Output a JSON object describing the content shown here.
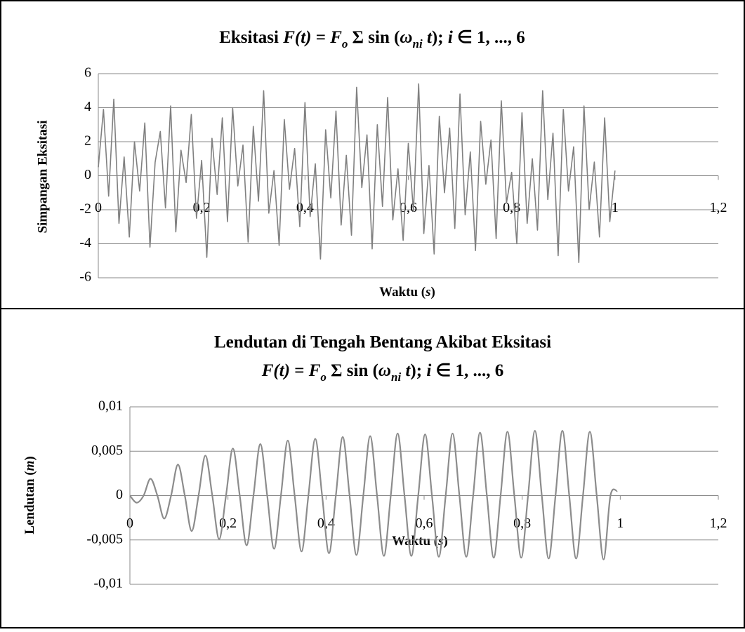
{
  "chart_data": [
    {
      "type": "line",
      "title": [
        "Eksitasi ",
        "F(t)",
        " = ",
        "F",
        "o",
        " Σ sin (",
        "ω",
        "ni",
        " t",
        "); ",
        "i",
        " ∈ 1, ..., 6"
      ],
      "xlabel": [
        "Waktu (",
        "s",
        ")"
      ],
      "ylabel": "Simpangan Eksitasi",
      "xlim": [
        0,
        1.2
      ],
      "xticks": [
        0,
        {
          "value": 0.2,
          "label": "0,2"
        },
        {
          "value": 0.4,
          "label": "0,4"
        },
        {
          "value": 0.6,
          "label": "0,6"
        },
        {
          "value": 0.8,
          "label": "0,8"
        },
        1,
        {
          "value": 1.2,
          "label": "1,2"
        }
      ],
      "ylim": [
        -6,
        6
      ],
      "yticks": [
        -6,
        -4,
        -2,
        0,
        2,
        4,
        6
      ],
      "grid": true,
      "smooth": false,
      "series": [
        {
          "color": "#808080",
          "x": [
            0,
            0.01,
            0.02,
            0.03,
            0.04,
            0.05,
            0.06,
            0.07,
            0.08,
            0.09,
            0.1,
            0.11,
            0.12,
            0.13,
            0.14,
            0.15,
            0.16,
            0.17,
            0.18,
            0.19,
            0.2,
            0.21,
            0.22,
            0.23,
            0.24,
            0.25,
            0.26,
            0.27,
            0.28,
            0.29,
            0.3,
            0.31,
            0.32,
            0.33,
            0.34,
            0.35,
            0.36,
            0.37,
            0.38,
            0.39,
            0.4,
            0.41,
            0.42,
            0.43,
            0.44,
            0.45,
            0.46,
            0.47,
            0.48,
            0.49,
            0.5,
            0.51,
            0.52,
            0.53,
            0.54,
            0.55,
            0.56,
            0.57,
            0.58,
            0.59,
            0.6,
            0.61,
            0.62,
            0.63,
            0.64,
            0.65,
            0.66,
            0.67,
            0.68,
            0.69,
            0.7,
            0.71,
            0.72,
            0.73,
            0.74,
            0.75,
            0.76,
            0.77,
            0.78,
            0.79,
            0.8,
            0.81,
            0.82,
            0.83,
            0.84,
            0.85,
            0.86,
            0.87,
            0.88,
            0.89,
            0.9,
            0.91,
            0.92,
            0.93,
            0.94,
            0.95,
            0.96,
            0.97,
            0.98,
            0.99,
            1.0
          ],
          "values": [
            0.5,
            3.9,
            -1.2,
            4.5,
            -2.8,
            1.1,
            -3.6,
            2.0,
            -0.9,
            3.1,
            -4.2,
            0.8,
            2.6,
            -1.9,
            4.1,
            -3.3,
            1.5,
            -0.4,
            3.6,
            -2.5,
            0.9,
            -4.8,
            2.2,
            -1.1,
            3.4,
            -2.7,
            4.0,
            -0.6,
            1.8,
            -3.9,
            2.9,
            -1.5,
            5.0,
            -2.2,
            0.3,
            -4.1,
            3.3,
            -0.8,
            1.6,
            -3.0,
            4.3,
            -2.4,
            0.7,
            -4.9,
            2.7,
            -1.3,
            3.8,
            -2.9,
            1.2,
            -3.5,
            5.2,
            -0.7,
            2.4,
            -4.3,
            3.0,
            -1.8,
            4.6,
            -2.6,
            0.4,
            -3.8,
            1.9,
            -2.1,
            5.4,
            -3.4,
            0.6,
            -4.6,
            3.5,
            -1.0,
            2.8,
            -3.1,
            4.8,
            -2.3,
            1.4,
            -4.4,
            3.2,
            -0.5,
            2.1,
            -3.7,
            4.4,
            -1.6,
            0.2,
            -4.0,
            3.7,
            -2.8,
            1.0,
            -3.2,
            5.0,
            -1.4,
            2.5,
            -4.7,
            3.9,
            -0.9,
            1.7,
            -5.1,
            4.1,
            -2.0,
            0.8,
            -3.6,
            3.4,
            -2.7,
            0.3
          ]
        }
      ]
    },
    {
      "type": "line",
      "title": "Lendutan di Tengah Bentang Akibat Eksitasi",
      "subtitle": [
        "F(t)",
        " = ",
        "F",
        "o",
        " Σ sin (",
        "ω",
        "ni",
        " t",
        "); ",
        "i",
        " ∈ 1, ..., 6"
      ],
      "xlabel": [
        "Waktu (",
        "s",
        ")"
      ],
      "ylabel": [
        "Lendutan (",
        "m",
        ")"
      ],
      "xlim": [
        0,
        1.2
      ],
      "xticks": [
        0,
        {
          "value": 0.2,
          "label": "0,2"
        },
        {
          "value": 0.4,
          "label": "0,4"
        },
        {
          "value": 0.6,
          "label": "0,6"
        },
        {
          "value": 0.8,
          "label": "0,8"
        },
        1,
        {
          "value": 1.2,
          "label": "1,2"
        }
      ],
      "ylim": [
        -0.01,
        0.01
      ],
      "yticks": [
        {
          "value": -0.01,
          "label": "-0,01"
        },
        {
          "value": -0.005,
          "label": "-0,005"
        },
        0,
        {
          "value": 0.005,
          "label": "0,005"
        },
        {
          "value": 0.01,
          "label": "0,01"
        }
      ],
      "grid": true,
      "smooth": true,
      "series": [
        {
          "color": "#8c8c8c",
          "x": [
            0,
            0.014,
            0.028,
            0.042,
            0.056,
            0.07,
            0.084,
            0.098,
            0.112,
            0.126,
            0.14,
            0.154,
            0.168,
            0.182,
            0.196,
            0.21,
            0.224,
            0.238,
            0.252,
            0.266,
            0.28,
            0.294,
            0.308,
            0.322,
            0.336,
            0.35,
            0.364,
            0.378,
            0.392,
            0.406,
            0.42,
            0.434,
            0.448,
            0.462,
            0.476,
            0.49,
            0.504,
            0.518,
            0.532,
            0.546,
            0.56,
            0.574,
            0.588,
            0.602,
            0.616,
            0.63,
            0.644,
            0.658,
            0.672,
            0.686,
            0.7,
            0.714,
            0.728,
            0.742,
            0.756,
            0.77,
            0.784,
            0.798,
            0.812,
            0.826,
            0.84,
            0.854,
            0.868,
            0.882,
            0.896,
            0.91,
            0.924,
            0.938,
            0.952,
            0.966,
            0.98,
            0.994
          ],
          "values": [
            0,
            -0.0008,
            0,
            0.0019,
            0,
            -0.0026,
            0,
            0.0035,
            0,
            -0.004,
            0,
            0.0045,
            0,
            -0.0049,
            0,
            0.0053,
            0,
            -0.0056,
            0,
            0.0058,
            0,
            -0.006,
            0,
            0.0062,
            0,
            -0.0063,
            0,
            0.0064,
            0,
            -0.0065,
            0,
            0.0066,
            0,
            -0.0067,
            0,
            0.0067,
            0,
            -0.0068,
            0,
            0.007,
            0,
            -0.0068,
            0,
            0.0069,
            0,
            -0.0069,
            0,
            0.007,
            0,
            -0.0069,
            0,
            0.0071,
            0,
            -0.007,
            0,
            0.0072,
            0,
            -0.007,
            0,
            0.0073,
            0,
            -0.0071,
            0,
            0.0073,
            0,
            -0.0071,
            0,
            0.0072,
            0,
            -0.0072,
            0,
            0.0005
          ]
        }
      ]
    }
  ]
}
